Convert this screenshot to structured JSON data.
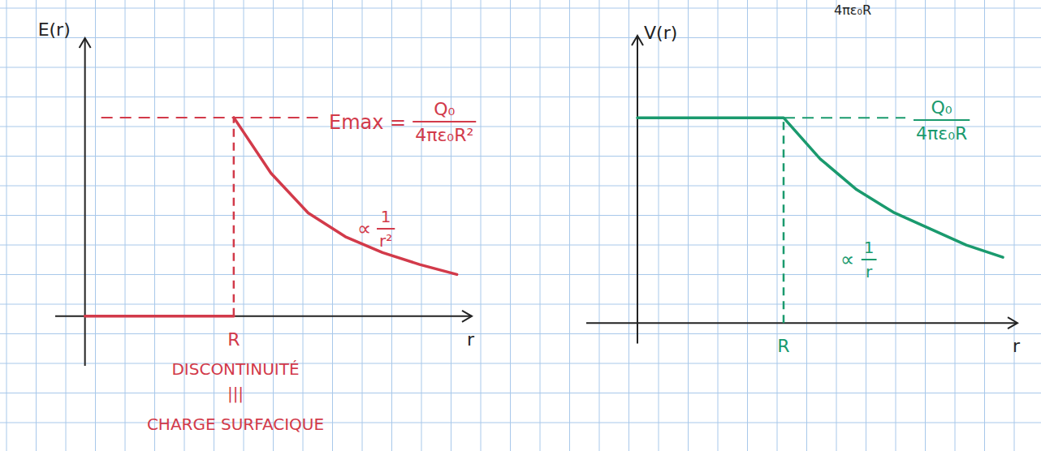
{
  "chart_data": [
    {
      "type": "line",
      "y_label": "E(r)",
      "x_label": "r",
      "xlim": [
        -0.2,
        2.6
      ],
      "ylim": [
        -0.25,
        1.4
      ],
      "xticks": [
        {
          "value": 1,
          "label": "R"
        }
      ],
      "grid": true,
      "x": [
        0,
        1,
        1,
        1,
        1.25,
        1.5,
        1.75,
        2,
        2.25,
        2.5
      ],
      "series": [
        {
          "color": "#d23a4a",
          "values": [
            0,
            0,
            null,
            1,
            0.72,
            0.52,
            0.4,
            0.32,
            0.26,
            0.21
          ]
        }
      ],
      "level": {
        "value": 1,
        "label": "Emax =",
        "numerator": "Q₀",
        "denominator": "4πε₀R²"
      },
      "annotation": {
        "symbol": "∝",
        "numerator": "1",
        "denominator": "r²"
      },
      "notes": [
        "DISCONTINUITÉ",
        "|||",
        "CHARGE SURFACIQUE"
      ]
    },
    {
      "type": "line",
      "y_label": "V(r)",
      "x_label": "r",
      "xlim": [
        -0.35,
        2.6
      ],
      "ylim": [
        -0.1,
        1.4
      ],
      "xticks": [
        {
          "value": 1,
          "label": "R"
        }
      ],
      "grid": true,
      "x": [
        0,
        1,
        1.25,
        1.5,
        1.75,
        2,
        2.25,
        2.5
      ],
      "series": [
        {
          "color": "#1a9a6e",
          "values": [
            1,
            1,
            0.8,
            0.65,
            0.54,
            0.46,
            0.38,
            0.32
          ]
        }
      ],
      "level": {
        "value": 1,
        "numerator": "Q₀",
        "denominator": "4πε₀R"
      },
      "annotation": {
        "symbol": "∝",
        "numerator": "1",
        "denominator": "r"
      },
      "header_fragment": "4πε₀R"
    }
  ]
}
